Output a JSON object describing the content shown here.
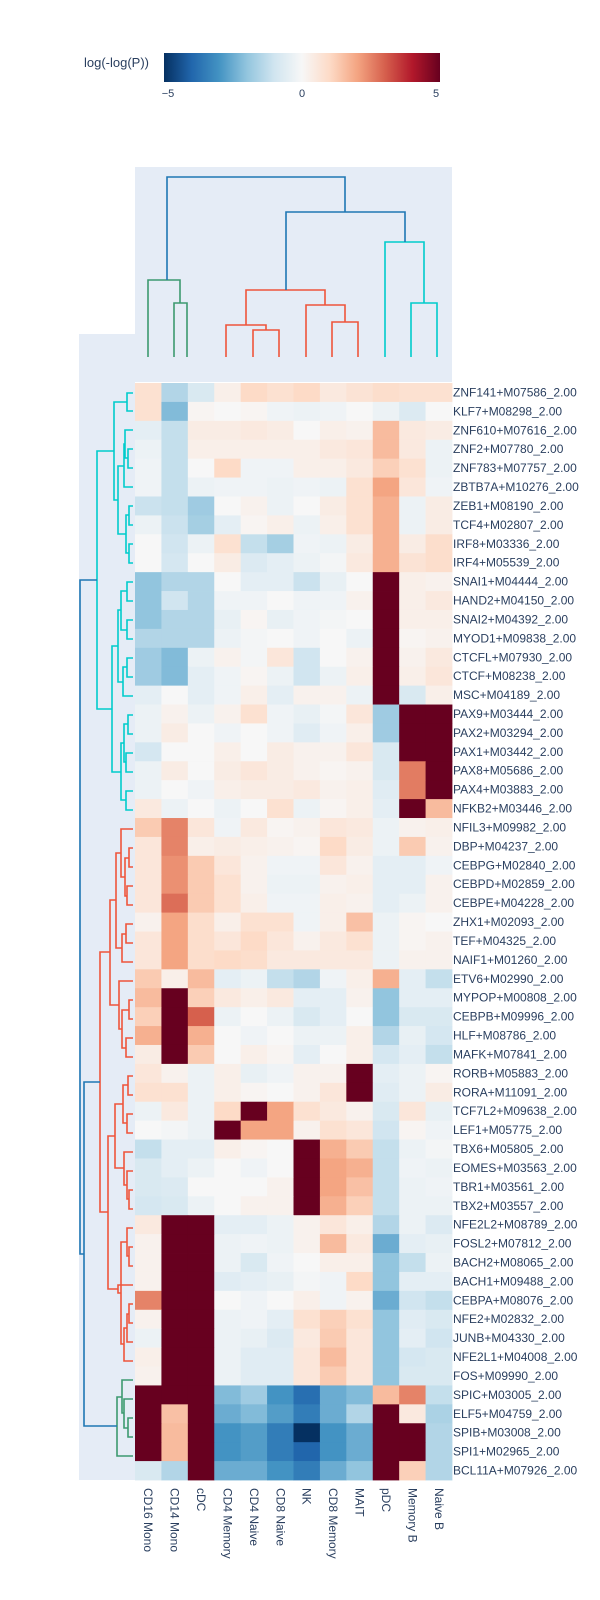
{
  "chart_data": {
    "type": "heatmap",
    "colorbar": {
      "title": "log(-log(P))",
      "min": -5,
      "max": 5,
      "tick_labels": [
        "−5",
        "0",
        "5"
      ],
      "colorscale": [
        "#053061",
        "#2166ac",
        "#4393c3",
        "#92c5de",
        "#d1e5f0",
        "#f7f7f7",
        "#fddbc7",
        "#f4a582",
        "#d6604d",
        "#b2182b",
        "#67001f"
      ]
    },
    "columns": [
      "CD16 Mono",
      "CD14 Mono",
      "cDC",
      "CD4 Memory",
      "CD4 Naive",
      "CD8 Naive",
      "NK",
      "CD8 Memory",
      "MAIT",
      "pDC",
      "Memory B",
      "Naive B"
    ],
    "rows": [
      "ZNF141+M07586_2.00",
      "KLF7+M08298_2.00",
      "ZNF610+M07616_2.00",
      "ZNF2+M07780_2.00",
      "ZNF783+M07757_2.00",
      "ZBTB7A+M10276_2.00",
      "ZEB1+M08190_2.00",
      "TCF4+M02807_2.00",
      "IRF8+M03336_2.00",
      "IRF4+M05539_2.00",
      "SNAI1+M04444_2.00",
      "HAND2+M04150_2.00",
      "SNAI2+M04392_2.00",
      "MYOD1+M09838_2.00",
      "CTCFL+M07930_2.00",
      "CTCF+M08238_2.00",
      "MSC+M04189_2.00",
      "PAX9+M03444_2.00",
      "PAX2+M03294_2.00",
      "PAX1+M03442_2.00",
      "PAX8+M05686_2.00",
      "PAX4+M03883_2.00",
      "NFKB2+M03446_2.00",
      "NFIL3+M09982_2.00",
      "DBP+M04237_2.00",
      "CEBPG+M02840_2.00",
      "CEBPD+M02859_2.00",
      "CEBPE+M04228_2.00",
      "ZHX1+M02093_2.00",
      "TEF+M04325_2.00",
      "NAIF1+M01260_2.00",
      "ETV6+M02990_2.00",
      "MYPOP+M00808_2.00",
      "CEBPB+M09996_2.00",
      "HLF+M08786_2.00",
      "MAFK+M07841_2.00",
      "RORB+M05883_2.00",
      "RORA+M11091_2.00",
      "TCF7L2+M09638_2.00",
      "LEF1+M05775_2.00",
      "TBX6+M05805_2.00",
      "EOMES+M03563_2.00",
      "TBR1+M03561_2.00",
      "TBX2+M03557_2.00",
      "NFE2L2+M08789_2.00",
      "FOSL2+M07812_2.00",
      "BACH2+M08065_2.00",
      "BACH1+M09488_2.00",
      "CEBPA+M08076_2.00",
      "NFE2+M02832_2.00",
      "JUNB+M04330_2.00",
      "NFE2L1+M04008_2.00",
      "FOS+M09990_2.00",
      "SPIC+M03005_2.00",
      "ELF5+M04759_2.00",
      "SPIB+M03008_2.00",
      "SPI1+M02965_2.00",
      "BCL11A+M07926_2.00"
    ],
    "values": [
      [
        0.8,
        -1.5,
        -0.8,
        0.3,
        1.0,
        0.8,
        1.0,
        0.5,
        0.7,
        0.9,
        0.8,
        0.8
      ],
      [
        0.8,
        -2.2,
        0.1,
        0.0,
        0.1,
        -0.2,
        -0.3,
        -0.2,
        0.0,
        -0.3,
        -0.7,
        0.0
      ],
      [
        -0.5,
        -1.2,
        0.4,
        0.4,
        0.5,
        0.4,
        0.0,
        0.3,
        0.2,
        1.6,
        0.5,
        0.4
      ],
      [
        -0.3,
        -1.2,
        0.3,
        0.3,
        0.3,
        0.3,
        0.3,
        0.5,
        0.6,
        1.6,
        0.5,
        -0.3
      ],
      [
        -0.2,
        -1.2,
        0.0,
        1.0,
        -0.2,
        -0.2,
        0.3,
        0.3,
        0.5,
        1.2,
        0.8,
        -0.3
      ],
      [
        -0.2,
        -1.2,
        -0.3,
        -0.2,
        -0.2,
        -0.3,
        -0.2,
        -0.3,
        0.8,
        2.0,
        0.6,
        -0.2
      ],
      [
        -1.1,
        -1.2,
        -1.8,
        0.0,
        0.2,
        -0.3,
        0.0,
        0.4,
        0.8,
        1.8,
        -0.3,
        0.4
      ],
      [
        -0.3,
        -1.1,
        -1.7,
        -0.5,
        0.1,
        0.3,
        -0.3,
        0.3,
        0.8,
        1.8,
        -0.3,
        0.4
      ],
      [
        0.0,
        -1.0,
        -0.3,
        0.8,
        -1.2,
        -1.7,
        -0.2,
        -0.3,
        0.4,
        1.8,
        0.4,
        0.9
      ],
      [
        0.0,
        -0.9,
        0.0,
        0.4,
        -0.7,
        -0.5,
        -0.3,
        -0.1,
        0.5,
        1.8,
        0.7,
        0.9
      ],
      [
        -2.0,
        -1.5,
        -1.5,
        0.0,
        -0.5,
        -0.5,
        -1.1,
        -0.4,
        0.0,
        6.0,
        0.3,
        0.2
      ],
      [
        -2.0,
        -1.0,
        -1.5,
        -0.2,
        -0.2,
        0.0,
        -0.2,
        -0.2,
        0.2,
        6.0,
        0.3,
        0.5
      ],
      [
        -2.0,
        -1.5,
        -1.5,
        -0.4,
        0.1,
        -0.4,
        -0.2,
        -0.1,
        0.0,
        6.0,
        0.3,
        0.3
      ],
      [
        -1.5,
        -1.5,
        -1.5,
        -0.3,
        -0.1,
        0.0,
        -0.2,
        0.0,
        -0.3,
        6.0,
        0.1,
        0.2
      ],
      [
        -1.8,
        -2.2,
        -0.3,
        0.2,
        -0.1,
        0.6,
        -1.0,
        0.0,
        0.2,
        6.0,
        0.2,
        0.5
      ],
      [
        -1.8,
        -2.2,
        -0.5,
        -0.2,
        0.1,
        -0.3,
        -1.0,
        -0.3,
        0.3,
        6.0,
        0.3,
        0.6
      ],
      [
        -0.5,
        0.0,
        -0.5,
        -0.2,
        0.3,
        -0.5,
        0.2,
        0.2,
        -0.3,
        6.0,
        -0.8,
        0.3
      ],
      [
        -0.3,
        0.2,
        -0.3,
        0.2,
        0.8,
        -0.2,
        -0.4,
        -0.1,
        0.6,
        -1.8,
        6.0,
        6.0
      ],
      [
        -0.3,
        0.4,
        0.0,
        -0.2,
        0.0,
        -0.2,
        -0.6,
        -0.2,
        0.3,
        -1.8,
        6.0,
        6.0
      ],
      [
        -0.9,
        0.0,
        0.0,
        0.3,
        0.0,
        0.4,
        0.2,
        0.2,
        0.6,
        -0.8,
        6.0,
        6.0
      ],
      [
        -0.3,
        0.4,
        0.0,
        0.4,
        0.6,
        0.4,
        0.2,
        0.1,
        0.2,
        -0.8,
        2.6,
        6.0
      ],
      [
        -0.3,
        0.0,
        -0.2,
        0.3,
        0.4,
        0.4,
        0.5,
        0.2,
        0.3,
        -0.6,
        2.6,
        6.0
      ],
      [
        0.5,
        -0.3,
        0.0,
        -0.3,
        0.0,
        0.8,
        -0.3,
        0.1,
        0.3,
        -0.5,
        6.0,
        1.6
      ],
      [
        1.3,
        2.5,
        0.6,
        -0.2,
        0.5,
        0.1,
        0.2,
        0.6,
        0.5,
        -0.3,
        0.2,
        0.3
      ],
      [
        0.6,
        2.5,
        0.3,
        0.4,
        0.3,
        0.2,
        0.1,
        1.0,
        0.4,
        -0.3,
        1.3,
        0.2
      ],
      [
        0.6,
        2.3,
        1.3,
        0.6,
        0.2,
        -0.2,
        -0.2,
        0.6,
        0.2,
        -0.5,
        -0.5,
        -0.2
      ],
      [
        0.6,
        2.3,
        1.3,
        0.8,
        0.2,
        -0.3,
        -0.3,
        0.2,
        0.3,
        -0.5,
        -0.5,
        0.2
      ],
      [
        0.6,
        2.8,
        1.3,
        0.8,
        0.3,
        -0.2,
        -0.2,
        0.3,
        0.2,
        -0.5,
        -0.3,
        0.2
      ],
      [
        0.2,
        2.0,
        0.9,
        0.3,
        0.8,
        0.8,
        -0.2,
        0.3,
        1.5,
        -0.3,
        0.1,
        0.0
      ],
      [
        0.6,
        2.0,
        0.9,
        0.6,
        1.0,
        0.6,
        0.2,
        0.5,
        0.8,
        -0.3,
        0.1,
        0.2
      ],
      [
        0.6,
        2.0,
        0.9,
        1.0,
        0.9,
        0.5,
        0.5,
        0.5,
        0.5,
        -0.3,
        0.2,
        0.2
      ],
      [
        1.3,
        0.3,
        1.6,
        -0.5,
        -0.3,
        -1.2,
        -1.5,
        -0.2,
        0.3,
        1.8,
        -0.5,
        -1.2
      ],
      [
        1.6,
        6.0,
        1.2,
        0.5,
        0.3,
        0.5,
        -0.5,
        -0.5,
        0.2,
        -2.0,
        -0.5,
        -0.5
      ],
      [
        1.2,
        6.0,
        3.0,
        -0.3,
        0.0,
        -0.3,
        -0.8,
        -0.5,
        0.0,
        -2.0,
        -0.8,
        -0.8
      ],
      [
        1.8,
        6.0,
        1.8,
        0.0,
        -0.2,
        0.0,
        -0.3,
        -0.3,
        0.3,
        -1.5,
        -0.4,
        -0.9
      ],
      [
        0.4,
        6.0,
        1.3,
        0.0,
        0.3,
        0.1,
        -0.5,
        0.0,
        0.3,
        -0.9,
        -0.5,
        -1.2
      ],
      [
        0.6,
        0.2,
        -0.3,
        0.3,
        -0.4,
        -0.2,
        0.2,
        0.2,
        6.0,
        -0.5,
        -0.3,
        0.1
      ],
      [
        0.8,
        0.8,
        -0.3,
        0.3,
        0.1,
        0.0,
        0.2,
        0.6,
        6.0,
        -0.6,
        -0.3,
        0.4
      ],
      [
        -0.3,
        0.5,
        -0.3,
        1.0,
        6.0,
        2.0,
        0.8,
        0.5,
        0.2,
        -0.8,
        0.6,
        -0.4
      ],
      [
        0.0,
        -0.1,
        -0.3,
        6.0,
        2.0,
        2.0,
        0.2,
        0.8,
        0.6,
        -1.0,
        0.1,
        -0.2
      ],
      [
        -1.2,
        -0.5,
        -0.5,
        0.3,
        0.1,
        0.0,
        6.0,
        1.8,
        1.3,
        -1.2,
        -0.3,
        -0.1
      ],
      [
        -0.8,
        -0.5,
        -0.3,
        0.0,
        -0.2,
        0.0,
        6.0,
        2.0,
        1.8,
        -1.2,
        -0.2,
        -0.3
      ],
      [
        -0.8,
        -0.7,
        0.0,
        0.0,
        0.0,
        0.2,
        6.0,
        2.0,
        1.5,
        -1.2,
        -0.3,
        -0.2
      ],
      [
        -0.9,
        -0.8,
        -0.3,
        0.0,
        0.2,
        0.2,
        6.0,
        1.8,
        1.2,
        -1.2,
        -0.3,
        -0.3
      ],
      [
        0.5,
        6.0,
        6.0,
        -0.5,
        -0.5,
        -0.3,
        0.2,
        0.6,
        0.3,
        -1.5,
        -0.3,
        -0.7
      ],
      [
        0.2,
        6.0,
        6.0,
        -0.3,
        -0.2,
        -0.3,
        0.2,
        1.6,
        0.5,
        -2.5,
        -0.5,
        -0.4
      ],
      [
        0.2,
        6.0,
        6.0,
        -0.3,
        -0.8,
        -0.2,
        0.0,
        0.3,
        0.3,
        -2.0,
        -1.2,
        -0.3
      ],
      [
        0.2,
        6.0,
        6.0,
        -0.6,
        -0.5,
        -0.4,
        -0.1,
        -0.2,
        1.0,
        -2.0,
        -0.5,
        -0.5
      ],
      [
        2.5,
        6.0,
        6.0,
        0.0,
        -0.2,
        0.0,
        0.3,
        -0.2,
        0.2,
        -2.5,
        -1.0,
        -1.2
      ],
      [
        0.2,
        6.0,
        6.0,
        -0.3,
        -0.2,
        -0.5,
        0.8,
        1.2,
        0.8,
        -2.0,
        -0.6,
        -0.8
      ],
      [
        -0.3,
        6.0,
        6.0,
        -0.3,
        -0.4,
        -0.7,
        0.5,
        1.3,
        0.6,
        -2.0,
        -0.5,
        -1.0
      ],
      [
        0.3,
        6.0,
        6.0,
        -0.3,
        -0.6,
        -0.6,
        0.6,
        1.6,
        0.6,
        -2.0,
        -0.9,
        -0.8
      ],
      [
        0.2,
        6.0,
        6.0,
        -0.3,
        -0.6,
        -0.6,
        0.6,
        1.3,
        0.6,
        -2.0,
        -0.8,
        -0.8
      ],
      [
        6.0,
        6.0,
        6.0,
        -2.2,
        -1.8,
        -3.0,
        -3.8,
        -2.5,
        -2.2,
        1.6,
        2.5,
        -1.2
      ],
      [
        6.0,
        1.5,
        6.0,
        -2.5,
        -2.2,
        -2.8,
        -3.5,
        -2.5,
        -1.5,
        6.0,
        0.5,
        -1.6
      ],
      [
        6.0,
        1.6,
        6.0,
        -3.0,
        -2.8,
        -3.5,
        -5.0,
        -3.0,
        -2.5,
        6.0,
        6.0,
        -1.5
      ],
      [
        6.0,
        1.6,
        6.0,
        -3.0,
        -2.8,
        -3.5,
        -4.0,
        -3.0,
        -2.5,
        6.0,
        6.0,
        -1.5
      ],
      [
        -0.8,
        -1.5,
        6.0,
        -2.5,
        -2.5,
        -3.0,
        -3.5,
        -2.5,
        -2.0,
        6.0,
        1.2,
        -1.5
      ]
    ]
  }
}
